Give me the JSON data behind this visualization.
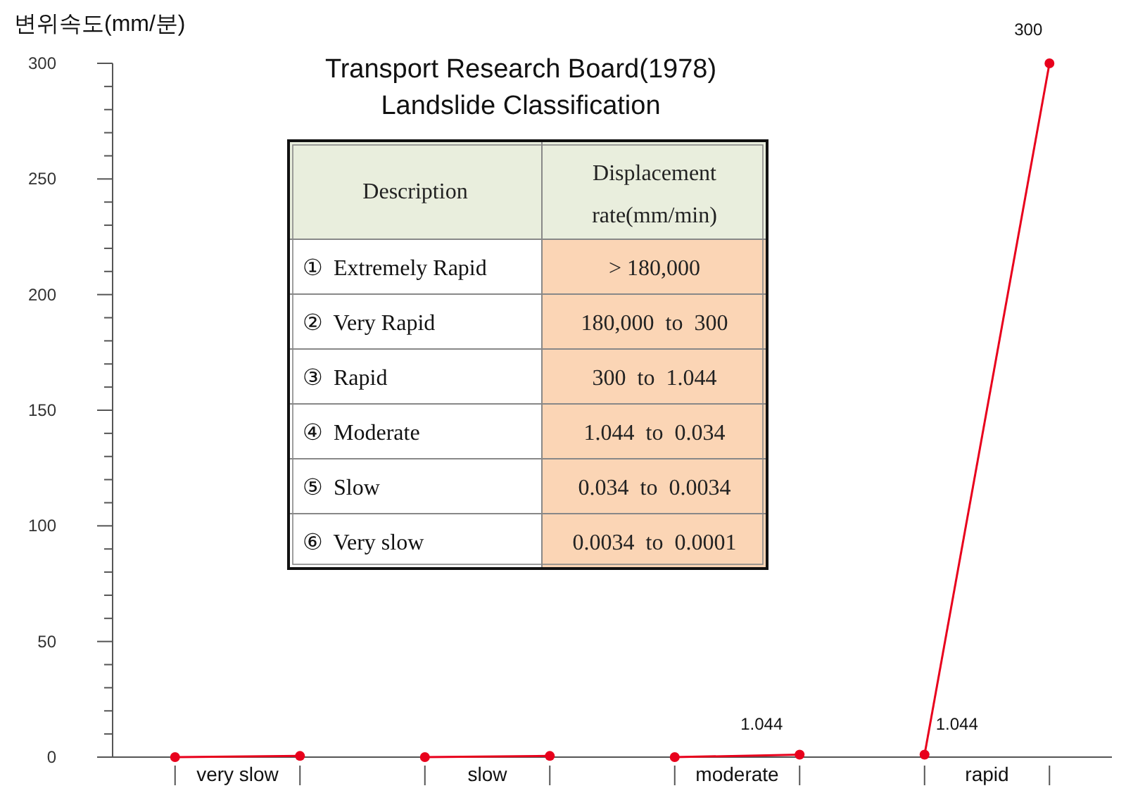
{
  "chart_data": [
    {
      "type": "line",
      "ylabel": "변위속도(mm/분)",
      "marker": "circle",
      "categories": [
        null,
        null,
        null,
        null,
        null,
        null,
        null,
        null
      ],
      "annotations": [
        "very slow",
        "slow",
        "moderate",
        "rapid"
      ],
      "ylim": [
        0,
        300
      ],
      "yticks": [
        0,
        {
          "value": 10,
          "label": null
        },
        {
          "value": 20,
          "label": null
        },
        {
          "value": 30,
          "label": null
        },
        {
          "value": 40,
          "label": null
        },
        50,
        {
          "value": 60,
          "label": null
        },
        {
          "value": 70,
          "label": null
        },
        {
          "value": 80,
          "label": null
        },
        {
          "value": 90,
          "label": null
        },
        100,
        {
          "value": 110,
          "label": null
        },
        {
          "value": 120,
          "label": null
        },
        {
          "value": 130,
          "label": null
        },
        {
          "value": 140,
          "label": null
        },
        150,
        {
          "value": 160,
          "label": null
        },
        {
          "value": 170,
          "label": null
        },
        {
          "value": 180,
          "label": null
        },
        {
          "value": 190,
          "label": null
        },
        200,
        {
          "value": 210,
          "label": null
        },
        {
          "value": 220,
          "label": null
        },
        {
          "value": 230,
          "label": null
        },
        {
          "value": 240,
          "label": null
        },
        250,
        {
          "value": 260,
          "label": null
        },
        {
          "value": 270,
          "label": null
        },
        {
          "value": 280,
          "label": null
        },
        {
          "value": 290,
          "label": null
        },
        300
      ],
      "series": [
        {
          "color": "#e8001c",
          "values": [
            0,
            0.5,
            null,
            null,
            null,
            null,
            null,
            null
          ]
        },
        {
          "color": "#e8001c",
          "values": [
            null,
            null,
            0,
            0.5,
            null,
            null,
            null,
            null
          ]
        },
        {
          "color": "#e8001c",
          "values": [
            null,
            null,
            null,
            null,
            0,
            1.044,
            null,
            null
          ],
          "value_labels": [
            null,
            null,
            null,
            null,
            null,
            "1.044",
            null,
            null
          ]
        },
        {
          "color": "#e8001c",
          "values": [
            null,
            null,
            null,
            null,
            null,
            null,
            1.044,
            300
          ],
          "value_labels": [
            null,
            null,
            null,
            null,
            null,
            null,
            "1.044",
            "300"
          ]
        }
      ]
    },
    {
      "type": "other",
      "title": "Transport  Research Board(1978)",
      "subtitle": "Landslide Classification",
      "categories": [
        "Description",
        "Displacement rate(mm/min)"
      ],
      "cell_labels": [
        [
          "①  Extremely Rapid",
          "> 180,000"
        ],
        [
          "②  Very Rapid",
          "180,000  to  300"
        ],
        [
          "③  Rapid",
          "300  to  1.044"
        ],
        [
          "④  Moderate",
          "1.044  to  0.034"
        ],
        [
          "⑤  Slow",
          "0.034  to  0.0034"
        ],
        [
          "⑥  Very slow",
          "0.0034  to  0.0001"
        ]
      ]
    }
  ]
}
